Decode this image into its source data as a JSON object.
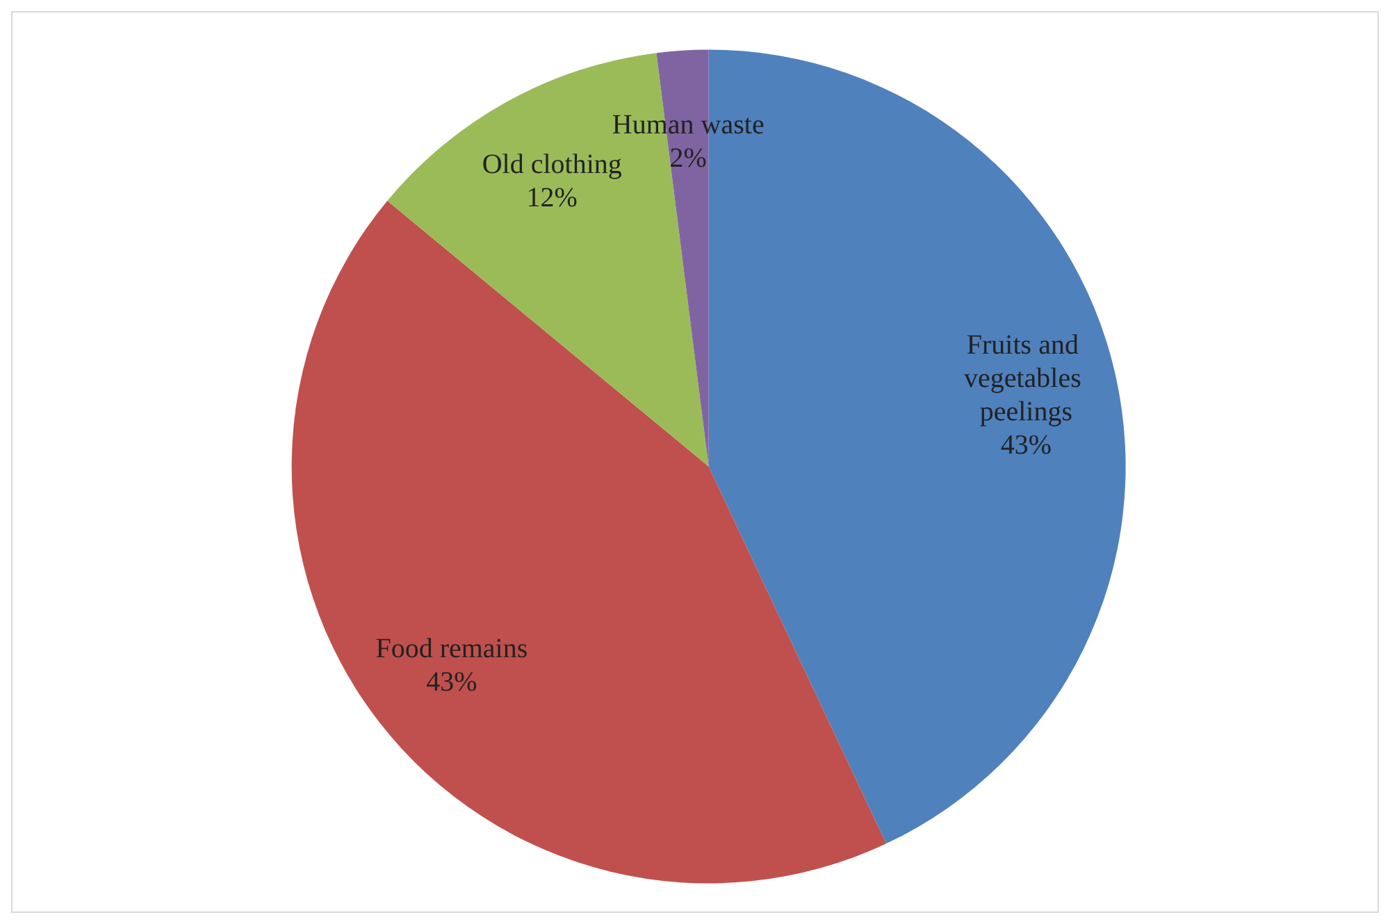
{
  "chart_data": {
    "type": "pie",
    "categories": [
      "Fruits and vegetables peelings",
      "Food remains",
      "Old clothing",
      "Human waste"
    ],
    "values": [
      43,
      43,
      12,
      2
    ],
    "value_labels": [
      "43%",
      "43%",
      "12%",
      "2%"
    ],
    "colors": [
      "#4f81bd",
      "#c0504d",
      "#9bbb59",
      "#8064a2"
    ]
  }
}
